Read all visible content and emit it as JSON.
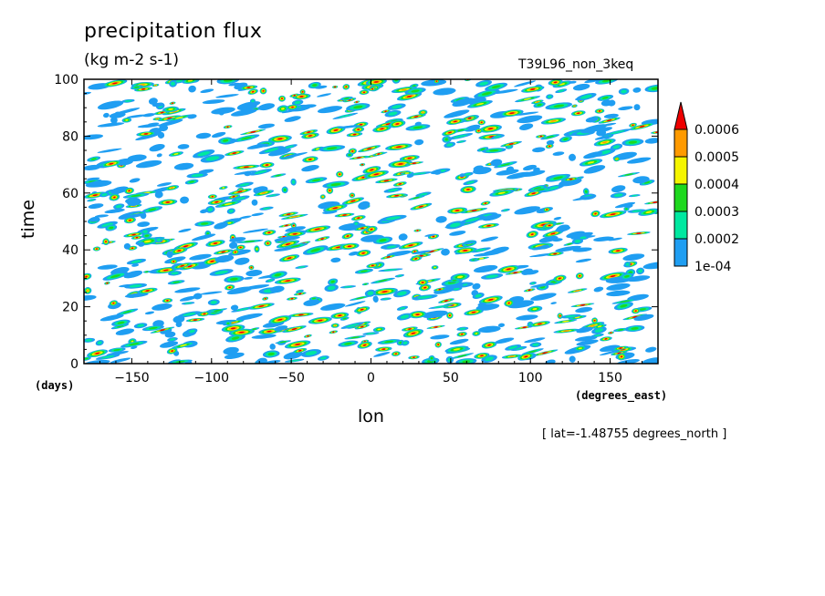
{
  "chart_data": {
    "type": "heatmap",
    "title": "precipitation flux",
    "units": "(kg m-2 s-1)",
    "run_label": "T39L96_non_3keq",
    "footnote": "[ lat=-1.48755 degrees_north ]",
    "xlabel": "lon",
    "ylabel": "time",
    "x_unit": "(degrees_east)",
    "y_unit": "(days)",
    "xlim": [
      -180,
      180
    ],
    "ylim": [
      0,
      100
    ],
    "x_ticks": [
      -150,
      -100,
      -50,
      0,
      50,
      100,
      150
    ],
    "y_ticks": [
      0,
      20,
      40,
      60,
      80,
      100
    ],
    "grid": false,
    "legend_position": "right",
    "color_levels": [
      {
        "label": "1e-04",
        "min": 0.0001,
        "max": 0.0002,
        "color": "#1f9ef2"
      },
      {
        "label": "0.0002",
        "min": 0.0002,
        "max": 0.0003,
        "color": "#00e8a0"
      },
      {
        "label": "0.0003",
        "min": 0.0003,
        "max": 0.0004,
        "color": "#1ed81e"
      },
      {
        "label": "0.0004",
        "min": 0.0004,
        "max": 0.0005,
        "color": "#f5f500"
      },
      {
        "label": "0.0005",
        "min": 0.0005,
        "max": 0.0006,
        "color": "#ff9a00"
      },
      {
        "label": "0.0006",
        "min": 0.0006,
        "max": null,
        "color": "#ee0000"
      }
    ]
  }
}
